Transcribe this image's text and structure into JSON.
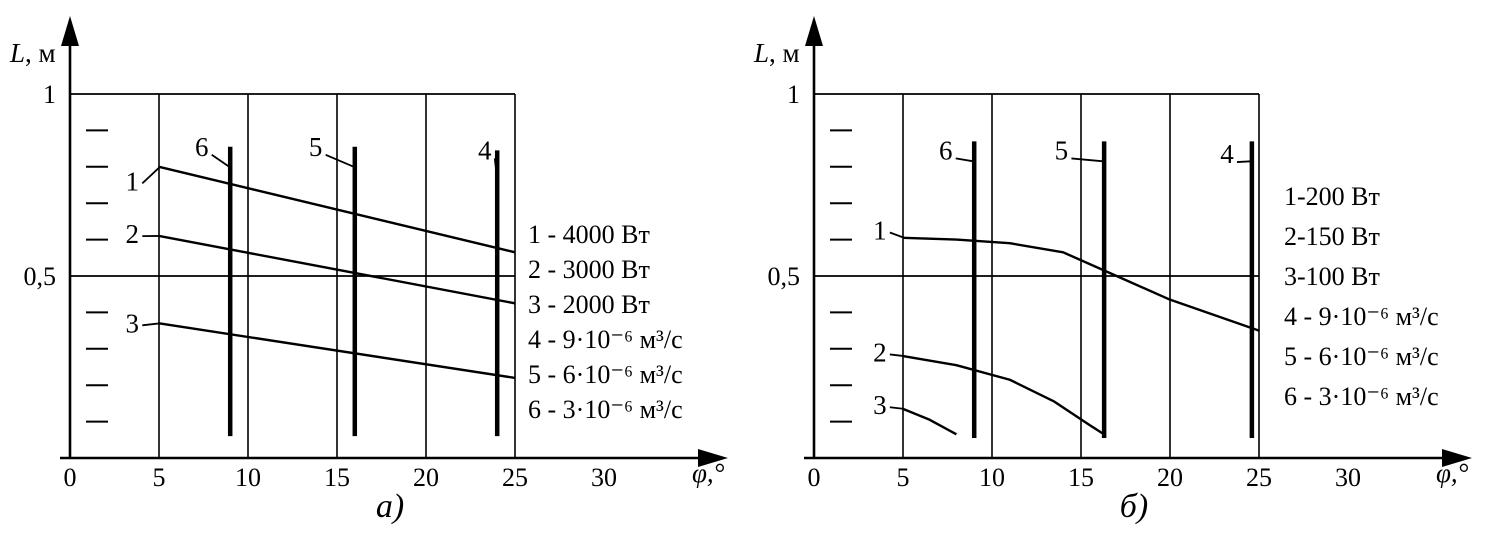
{
  "page": {
    "background": "#ffffff",
    "ink": "#000000"
  },
  "figure": {
    "captions": [
      "а)",
      "б)"
    ]
  },
  "chart_data": [
    {
      "id": "a",
      "type": "line",
      "caption": "а)",
      "xlabel": "φ,°",
      "ylabel_symbol": "L",
      "ylabel_unit": ", м",
      "xlim": [
        0,
        34
      ],
      "ylim": [
        0,
        1.1
      ],
      "x_tick_values": [
        0,
        5,
        10,
        15,
        20,
        25,
        30
      ],
      "x_ticks": [
        "0",
        "5",
        "10",
        "15",
        "20",
        "25",
        "30"
      ],
      "y_ticks": [
        {
          "value": 1,
          "label": "1"
        },
        {
          "value": 0.5,
          "label": "0,5"
        }
      ],
      "y_minor_ticks": [
        0.1,
        0.2,
        0.3,
        0.4,
        0.6,
        0.7,
        0.8,
        0.9
      ],
      "grid_x": [
        5,
        10,
        15,
        20,
        25
      ],
      "grid_y": [
        0.5,
        1
      ],
      "series": [
        {
          "name": "1",
          "value_text": "4000 Вт",
          "label_pos": [
            3.5,
            0.76
          ],
          "points": [
            [
              5,
              0.8
            ],
            [
              25,
              0.565
            ]
          ]
        },
        {
          "name": "2",
          "value_text": "3000 Вт",
          "label_pos": [
            3.5,
            0.615
          ],
          "points": [
            [
              5,
              0.61
            ],
            [
              25,
              0.425
            ]
          ]
        },
        {
          "name": "3",
          "value_text": "2000 Вт",
          "label_pos": [
            3.5,
            0.37
          ],
          "points": [
            [
              5,
              0.37
            ],
            [
              25,
              0.22
            ]
          ]
        }
      ],
      "flow_markers": [
        {
          "name": "6",
          "value_text": "3·10⁻⁶ м³/с",
          "x": 9,
          "y_from": 0.06,
          "y_to": 0.855,
          "label_pos": [
            7.4,
            0.855
          ]
        },
        {
          "name": "5",
          "value_text": "6·10⁻⁶ м³/с",
          "x": 16,
          "y_from": 0.06,
          "y_to": 0.855,
          "label_pos": [
            13.8,
            0.855
          ]
        },
        {
          "name": "4",
          "value_text": "9·10⁻⁶ м³/с",
          "x": 24,
          "y_from": 0.06,
          "y_to": 0.845,
          "label_pos": [
            23.3,
            0.845
          ]
        }
      ],
      "legend": [
        "1 - 4000 Вт",
        "2 - 3000 Вт",
        "3 - 2000 Вт",
        "4 - 9·10⁻⁶ м³/с",
        "5 - 6·10⁻⁶ м³/с",
        "6 - 3·10⁻⁶ м³/с"
      ]
    },
    {
      "id": "b",
      "type": "line",
      "caption": "б)",
      "xlabel": "φ,°",
      "ylabel_symbol": "L",
      "ylabel_unit": ", м",
      "xlim": [
        0,
        34
      ],
      "ylim": [
        0,
        1.1
      ],
      "x_tick_values": [
        0,
        5,
        10,
        15,
        20,
        25,
        30
      ],
      "x_ticks": [
        "0",
        "5",
        "10",
        "15",
        "20",
        "25",
        "30"
      ],
      "y_ticks": [
        {
          "value": 1,
          "label": "1"
        },
        {
          "value": 0.5,
          "label": "0,5"
        }
      ],
      "y_minor_ticks": [
        0.1,
        0.2,
        0.3,
        0.4,
        0.6,
        0.7,
        0.8,
        0.9
      ],
      "grid_x": [
        5,
        10,
        15,
        20,
        25
      ],
      "grid_y": [
        0.5,
        1
      ],
      "series": [
        {
          "name": "1",
          "value_text": "200 Вт",
          "label_pos": [
            3.7,
            0.625
          ],
          "points": [
            [
              5,
              0.605
            ],
            [
              8,
              0.6
            ],
            [
              11,
              0.59
            ],
            [
              14,
              0.565
            ],
            [
              17,
              0.5
            ],
            [
              20,
              0.435
            ],
            [
              25,
              0.35
            ]
          ]
        },
        {
          "name": "2",
          "value_text": "150 Вт",
          "label_pos": [
            3.7,
            0.29
          ],
          "points": [
            [
              5,
              0.28
            ],
            [
              8,
              0.255
            ],
            [
              11,
              0.215
            ],
            [
              13.5,
              0.155
            ],
            [
              15.5,
              0.09
            ],
            [
              16.3,
              0.065
            ]
          ]
        },
        {
          "name": "3",
          "value_text": "100 Вт",
          "label_pos": [
            3.7,
            0.145
          ],
          "points": [
            [
              5,
              0.135
            ],
            [
              6.5,
              0.105
            ],
            [
              8,
              0.065
            ]
          ]
        }
      ],
      "flow_markers": [
        {
          "name": "6",
          "value_text": "3·10⁻⁶ м³/с",
          "x": 9,
          "y_from": 0.055,
          "y_to": 0.87,
          "label_pos": [
            7.4,
            0.845
          ]
        },
        {
          "name": "5",
          "value_text": "6·10⁻⁶ м³/с",
          "x": 16.3,
          "y_from": 0.055,
          "y_to": 0.87,
          "label_pos": [
            13.9,
            0.845
          ]
        },
        {
          "name": "4",
          "value_text": "9·10⁻⁶ м³/с",
          "x": 24.6,
          "y_from": 0.055,
          "y_to": 0.87,
          "label_pos": [
            23.2,
            0.835
          ]
        }
      ],
      "legend": [
        "1-200 Вт",
        "2-150 Вт",
        "3-100 Вт",
        "4 - 9·10⁻⁶ м³/с",
        "5 - 6·10⁻⁶ м³/с",
        "6 - 3·10⁻⁶ м³/с"
      ]
    }
  ]
}
